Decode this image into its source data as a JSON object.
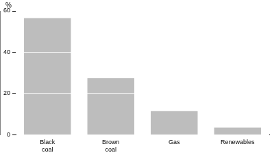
{
  "chart_data": {
    "type": "bar",
    "ylabel": "%",
    "categories": [
      "Black coal",
      "Brown coal",
      "Gas",
      "Renewables"
    ],
    "values": [
      56.5,
      27.5,
      11.5,
      3.5
    ],
    "color": "#bdbdbd",
    "ylim": [
      0,
      60
    ],
    "yticks": [
      0,
      20,
      40,
      60
    ],
    "grid": true
  }
}
